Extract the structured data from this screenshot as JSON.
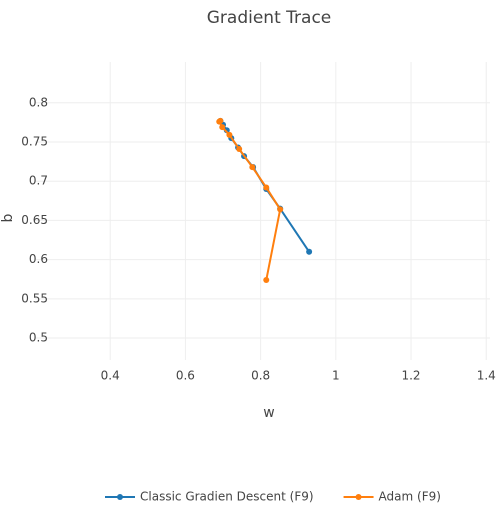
{
  "chart_data": {
    "type": "line",
    "title": "Gradient Trace",
    "x_label": "w",
    "y_label": "b",
    "xlim": [
      0.2,
      1.41
    ],
    "ylim": [
      0.472,
      0.852
    ],
    "xticks": [
      0.4,
      0.6,
      0.8,
      1,
      1.2,
      1.4
    ],
    "yticks": [
      0.5,
      0.55,
      0.6,
      0.65,
      0.7,
      0.75,
      0.8
    ],
    "grid": true,
    "legend": "bottom",
    "series": [
      {
        "name": "Classic Gradien Descent (F9)",
        "color": "#1f77b4",
        "x": [
          0.929,
          0.852,
          0.815,
          0.78,
          0.756,
          0.74,
          0.722,
          0.71,
          0.7,
          0.693
        ],
        "values": [
          0.61,
          0.665,
          0.69,
          0.718,
          0.732,
          0.743,
          0.755,
          0.765,
          0.772,
          0.777
        ]
      },
      {
        "name": "Adam (F9)",
        "color": "#ff7f0e",
        "x": [
          0.815,
          0.852,
          0.815,
          0.778,
          0.743,
          0.717,
          0.698,
          0.69,
          0.693
        ],
        "values": [
          0.574,
          0.664,
          0.692,
          0.718,
          0.741,
          0.759,
          0.769,
          0.776,
          0.777
        ]
      }
    ]
  }
}
